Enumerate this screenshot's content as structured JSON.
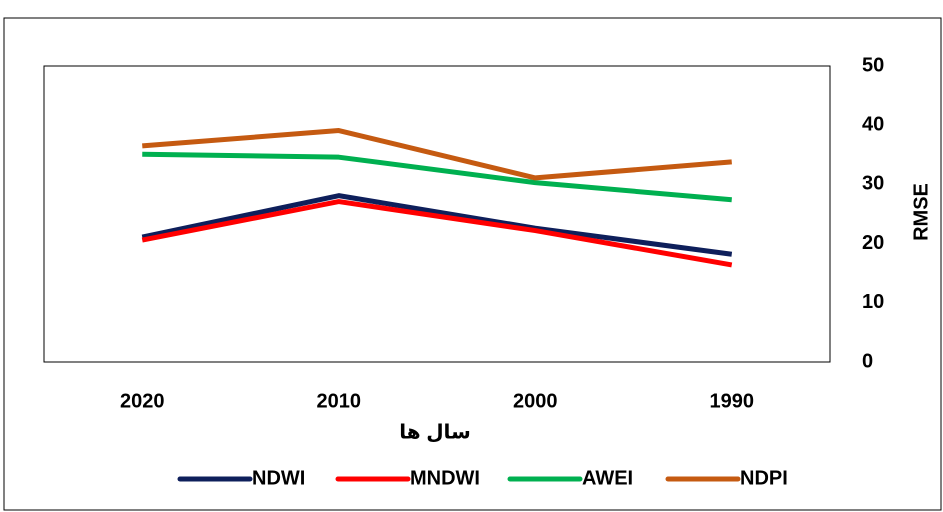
{
  "chart_data": {
    "type": "line",
    "categories": [
      "2020",
      "2010",
      "2000",
      "1990"
    ],
    "x_axis_label": "سال ها",
    "y_axis_label": "RMSE",
    "ylim": [
      0,
      50
    ],
    "yticks": [
      0,
      10,
      20,
      30,
      40,
      50
    ],
    "grid": false,
    "y_axis_side": "right",
    "legend": "bottom",
    "series": [
      {
        "name": "NDWI",
        "color": "#0e1f5b",
        "values": [
          21.1,
          28.1,
          22.6,
          18.2
        ]
      },
      {
        "name": "MNDWI",
        "color": "#ff0000",
        "values": [
          20.6,
          27.1,
          22.2,
          16.4
        ]
      },
      {
        "name": "AWEI",
        "color": "#00b050",
        "values": [
          35.1,
          34.6,
          30.3,
          27.4
        ]
      },
      {
        "name": "NDPI",
        "color": "#c55a11",
        "values": [
          36.5,
          39.1,
          31.1,
          33.8
        ]
      }
    ]
  }
}
